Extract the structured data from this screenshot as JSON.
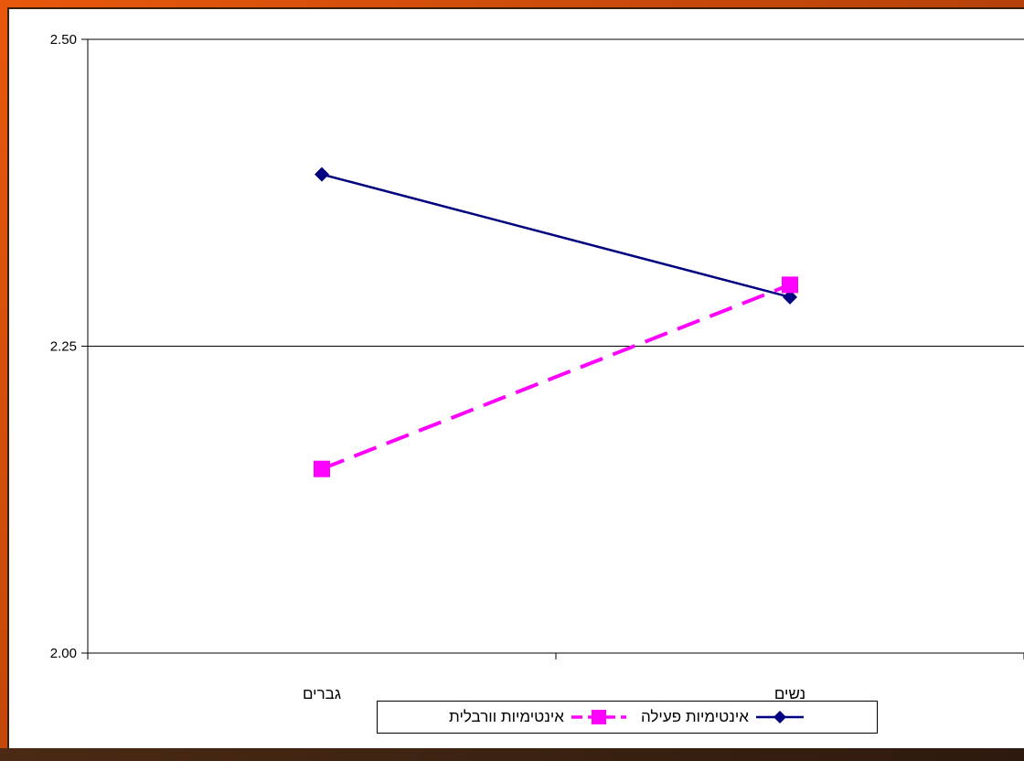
{
  "chart_data": {
    "type": "line",
    "categories": [
      "גברים",
      "נשים"
    ],
    "series": [
      {
        "name": "אינטימיות פעילה",
        "values": [
          2.39,
          2.29
        ],
        "color": "#000080",
        "marker": "diamond",
        "dash": "solid"
      },
      {
        "name": "אינטימיות וורבלית",
        "values": [
          2.15,
          2.3
        ],
        "color": "#ff00ff",
        "marker": "square",
        "dash": "dashed"
      }
    ],
    "ylim": [
      2.0,
      2.5
    ],
    "yticks": [
      "2.00",
      "2.25",
      "2.50"
    ],
    "ytick_values": [
      2.0,
      2.25,
      2.5
    ],
    "grid": "horizontal",
    "legend_position": "bottom",
    "title": "",
    "xlabel": "",
    "ylabel": ""
  },
  "colors": {
    "frame": "#d2520e",
    "plot_background": "#ffffff"
  }
}
